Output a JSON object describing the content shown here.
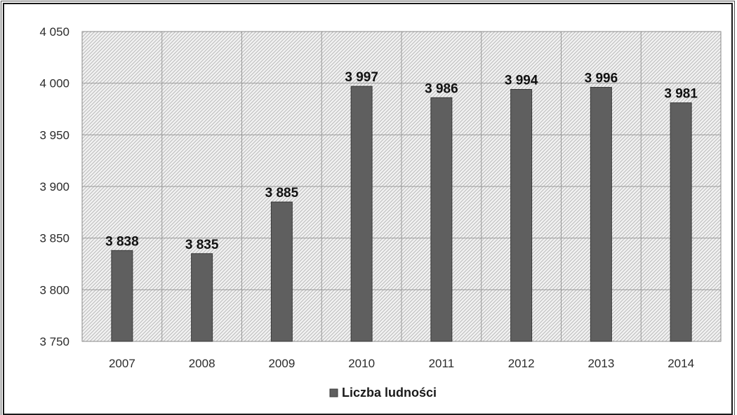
{
  "chart_data": {
    "type": "bar",
    "categories": [
      "2007",
      "2008",
      "2009",
      "2010",
      "2011",
      "2012",
      "2013",
      "2014"
    ],
    "series": [
      {
        "name": "Liczba ludności",
        "values": [
          3838,
          3835,
          3885,
          3997,
          3986,
          3994,
          3996,
          3981
        ],
        "color": "#5f5f5f"
      }
    ],
    "data_labels": [
      "3 838",
      "3 835",
      "3 885",
      "3 997",
      "3 986",
      "3 994",
      "3 996",
      "3 981"
    ],
    "y_ticks": [
      3750,
      3800,
      3850,
      3900,
      3950,
      4000,
      4050
    ],
    "y_tick_labels": [
      "3 750",
      "3 800",
      "3 850",
      "3 900",
      "3 950",
      "4 000",
      "4 050"
    ],
    "ylim": [
      3750,
      4050
    ],
    "grid": true,
    "legend_position": "bottom",
    "title": "",
    "xlabel": "",
    "ylabel": ""
  }
}
